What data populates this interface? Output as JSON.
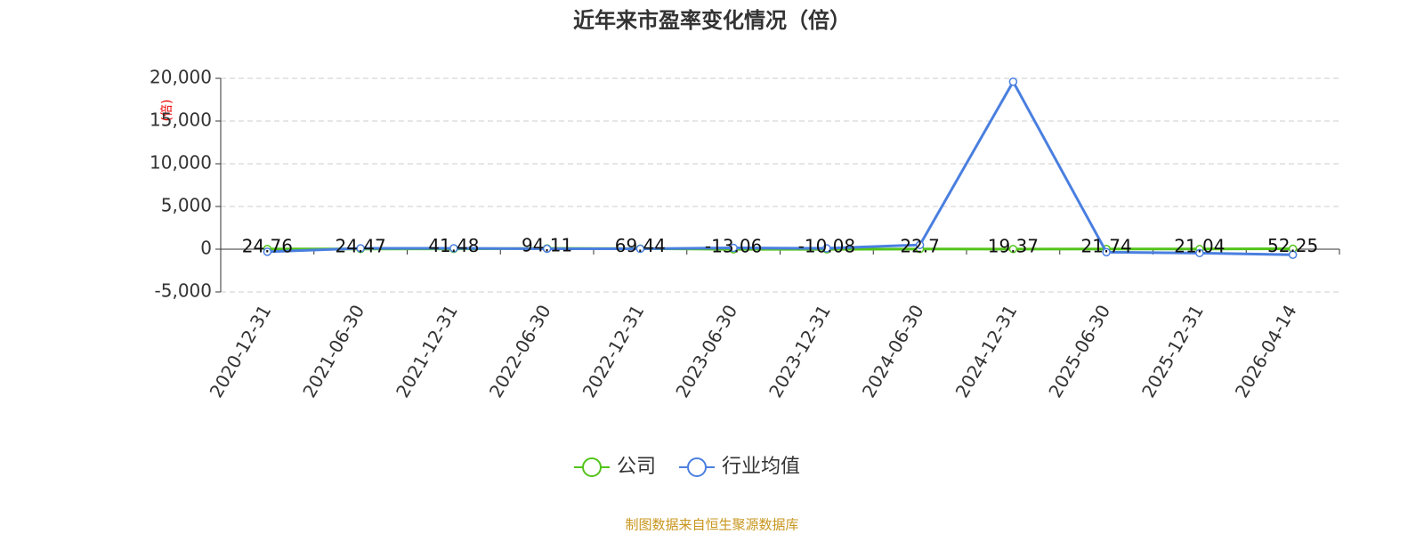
{
  "chart_data": {
    "type": "line",
    "title": "近年来市盈率变化情况（倍）",
    "y_label": "(倍)",
    "categories": [
      "2020-12-31",
      "2021-06-30",
      "2021-12-31",
      "2022-06-30",
      "2022-12-31",
      "2023-06-30",
      "2023-12-31",
      "2024-06-30",
      "2024-12-31",
      "2025-06-30",
      "2025-12-31",
      "2026-04-14"
    ],
    "series": [
      {
        "name": "公司",
        "color": "#52c41a",
        "values": [
          24.76,
          24.47,
          41.48,
          94.11,
          69.44,
          -13.06,
          -10.08,
          22.7,
          19.37,
          21.74,
          21.04,
          52.25
        ],
        "data_labels": true
      },
      {
        "name": "行业均值",
        "color": "#4a7fe0",
        "values": [
          -300,
          100,
          100,
          50,
          50,
          150,
          100,
          500,
          19600,
          -350,
          -450,
          -650
        ]
      }
    ],
    "ylim": [
      -5000,
      20000
    ],
    "yticks": [
      {
        "value": -5000,
        "label": "-5,000"
      },
      0,
      {
        "value": 5000,
        "label": "5,000"
      },
      {
        "value": 10000,
        "label": "10,000"
      },
      {
        "value": 15000,
        "label": "15,000"
      },
      {
        "value": 20000,
        "label": "20,000"
      }
    ],
    "grid": true,
    "legend": "bottom",
    "source": "制图数据来自恒生聚源数据库"
  }
}
